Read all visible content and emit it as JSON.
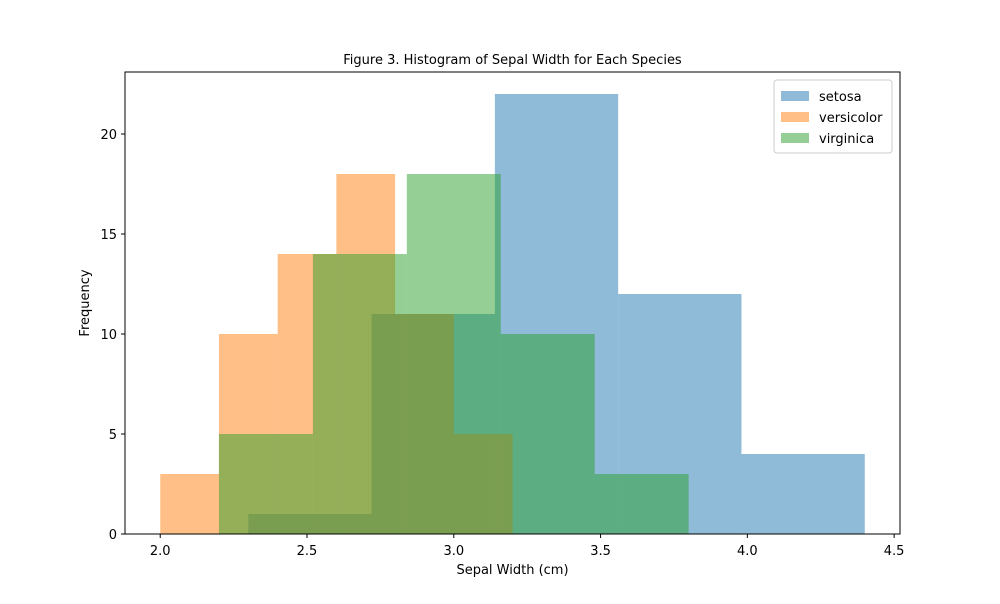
{
  "chart_data": {
    "type": "histogram",
    "title": "Figure 3. Histogram of Sepal Width for Each Species",
    "xlabel": "Sepal Width (cm)",
    "ylabel": "Frequency",
    "xlim": [
      1.88,
      4.52
    ],
    "ylim": [
      0,
      23.1
    ],
    "xticks": [
      2.0,
      2.5,
      3.0,
      3.5,
      4.0,
      4.5
    ],
    "xtick_labels": [
      "2.0",
      "2.5",
      "3.0",
      "3.5",
      "4.0",
      "4.5"
    ],
    "yticks": [
      0,
      5,
      10,
      15,
      20
    ],
    "ytick_labels": [
      "0",
      "5",
      "10",
      "15",
      "20"
    ],
    "grid": false,
    "legend_position": "top-right",
    "bar_alpha": 0.5,
    "series": [
      {
        "name": "setosa",
        "color": "#1f77b4",
        "bins": [
          2.3,
          2.72,
          3.14,
          3.56,
          3.98,
          4.4
        ],
        "counts": [
          1,
          11,
          22,
          12,
          4
        ]
      },
      {
        "name": "versicolor",
        "color": "#ff7f0e",
        "bins": [
          2.0,
          2.2,
          2.4,
          2.6,
          2.8,
          3.0,
          3.2,
          3.4
        ],
        "counts": [
          3,
          10,
          14,
          18,
          11,
          5,
          0
        ]
      },
      {
        "name": "virginica",
        "color": "#2ca02c",
        "bins": [
          2.2,
          2.52,
          2.84,
          3.16,
          3.48,
          3.8
        ],
        "counts": [
          5,
          14,
          18,
          10,
          3
        ]
      }
    ]
  }
}
